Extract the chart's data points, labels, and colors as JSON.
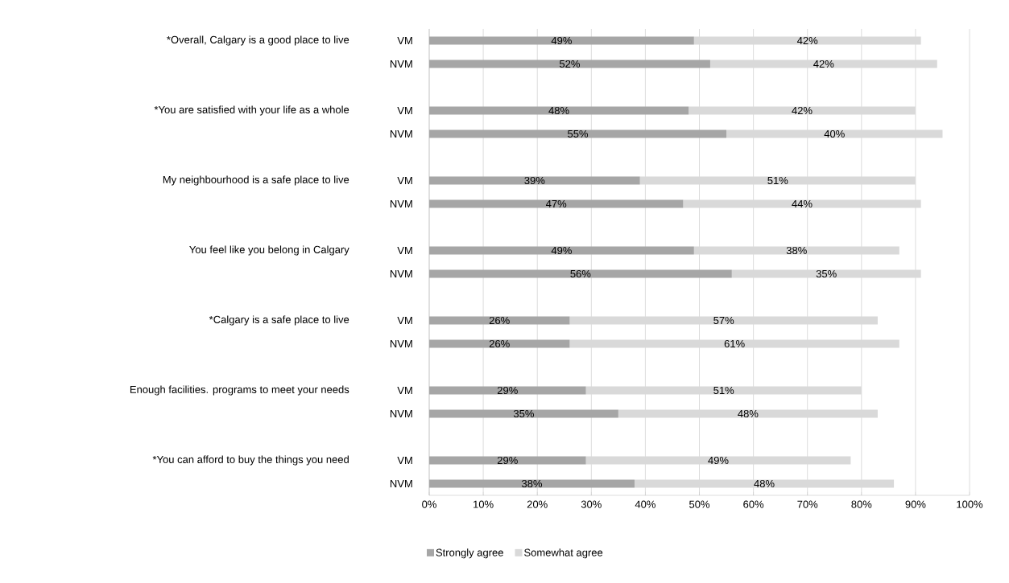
{
  "chart_data": {
    "type": "bar",
    "orientation": "horizontal",
    "stacked": true,
    "categories": [
      "VM",
      "NVM",
      "VM",
      "NVM",
      "VM",
      "NVM",
      "VM",
      "NVM",
      "VM",
      "NVM",
      "VM",
      "NVM",
      "VM",
      "NVM"
    ],
    "annotations": [
      "*Overall, Calgary is a good place to live",
      "*You are satisfied with your life as a whole",
      "My neighbourhood is a safe place to live",
      "You feel like you belong in Calgary",
      "*Calgary is a safe place to live",
      "Enough facilities. programs to meet your needs",
      "*You can afford to buy the things you need"
    ],
    "series": [
      {
        "name": "Strongly agree",
        "color": "#a6a6a6",
        "values": [
          49,
          52,
          48,
          55,
          39,
          47,
          49,
          56,
          26,
          26,
          29,
          35,
          29,
          38
        ],
        "value_labels": [
          "49%",
          "52%",
          "48%",
          "55%",
          "39%",
          "47%",
          "49%",
          "56%",
          "26%",
          "26%",
          "29%",
          "35%",
          "29%",
          "38%"
        ]
      },
      {
        "name": "Somewhat agree",
        "color": "#d9d9d9",
        "values": [
          42,
          42,
          42,
          40,
          51,
          44,
          38,
          35,
          57,
          61,
          51,
          48,
          49,
          48
        ],
        "value_labels": [
          "42%",
          "42%",
          "42%",
          "40%",
          "51%",
          "44%",
          "38%",
          "35%",
          "57%",
          "61%",
          "51%",
          "48%",
          "49%",
          "48%"
        ]
      }
    ],
    "xlim": [
      0,
      100
    ],
    "xticks": [
      {
        "value": 0,
        "label": "0%"
      },
      {
        "value": 10,
        "label": "10%"
      },
      {
        "value": 20,
        "label": "20%"
      },
      {
        "value": 30,
        "label": "30%"
      },
      {
        "value": 40,
        "label": "40%"
      },
      {
        "value": 50,
        "label": "50%"
      },
      {
        "value": 60,
        "label": "60%"
      },
      {
        "value": 70,
        "label": "70%"
      },
      {
        "value": 80,
        "label": "80%"
      },
      {
        "value": 90,
        "label": "90%"
      },
      {
        "value": 100,
        "label": "100%"
      }
    ],
    "grid": "x",
    "legend": "bottom"
  }
}
